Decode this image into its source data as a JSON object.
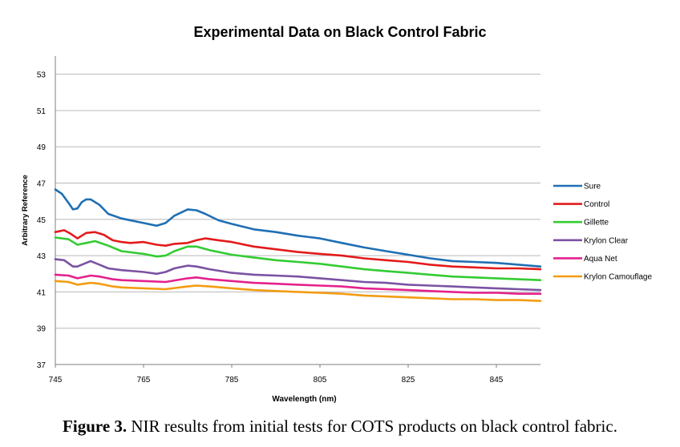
{
  "chart_data": {
    "type": "line",
    "title": "Experimental Data on Black Control Fabric",
    "xlabel": "Wavelength (nm)",
    "ylabel": "Arbitrary Reference",
    "xlim": [
      745,
      855
    ],
    "ylim": [
      37,
      54
    ],
    "xticks": [
      745,
      765,
      785,
      805,
      825,
      845
    ],
    "yticks": [
      37,
      39,
      41,
      43,
      45,
      47,
      49,
      51,
      53
    ],
    "grid": true,
    "legend": "right",
    "series": [
      {
        "name": "Sure",
        "color": "#1f6fb4",
        "x": [
          745,
          746.5,
          748,
          749,
          750,
          751,
          752,
          753,
          755,
          757,
          760,
          765,
          768,
          770,
          772,
          775,
          777,
          779,
          782,
          785,
          790,
          795,
          800,
          805,
          810,
          815,
          820,
          825,
          830,
          835,
          840,
          845,
          850,
          855
        ],
        "y": [
          46.65,
          46.4,
          45.9,
          45.55,
          45.6,
          45.95,
          46.1,
          46.1,
          45.8,
          45.3,
          45.05,
          44.8,
          44.65,
          44.8,
          45.2,
          45.55,
          45.5,
          45.3,
          44.95,
          44.75,
          44.45,
          44.3,
          44.1,
          43.95,
          43.7,
          43.45,
          43.25,
          43.05,
          42.85,
          42.7,
          42.65,
          42.6,
          42.5,
          42.4
        ]
      },
      {
        "name": "Control",
        "color": "#e31a1c",
        "x": [
          745,
          747,
          748.5,
          750,
          752,
          754,
          756,
          758,
          760,
          762,
          765,
          768,
          770,
          772,
          775,
          777,
          779,
          782,
          785,
          790,
          795,
          800,
          805,
          810,
          815,
          820,
          825,
          830,
          835,
          840,
          845,
          850,
          855
        ],
        "y": [
          44.3,
          44.4,
          44.2,
          43.95,
          44.25,
          44.3,
          44.15,
          43.85,
          43.75,
          43.7,
          43.75,
          43.6,
          43.55,
          43.65,
          43.7,
          43.85,
          43.95,
          43.85,
          43.75,
          43.5,
          43.35,
          43.2,
          43.1,
          43.0,
          42.85,
          42.75,
          42.65,
          42.5,
          42.4,
          42.35,
          42.3,
          42.3,
          42.25
        ]
      },
      {
        "name": "Gillette",
        "color": "#33cc33",
        "x": [
          745,
          748,
          750,
          752,
          754,
          757,
          760,
          765,
          768,
          770,
          772,
          775,
          777,
          780,
          785,
          790,
          795,
          800,
          805,
          810,
          815,
          820,
          825,
          830,
          835,
          840,
          845,
          850,
          855
        ],
        "y": [
          44.0,
          43.9,
          43.6,
          43.7,
          43.8,
          43.55,
          43.25,
          43.1,
          42.95,
          43.0,
          43.25,
          43.5,
          43.5,
          43.3,
          43.05,
          42.9,
          42.75,
          42.65,
          42.55,
          42.4,
          42.25,
          42.15,
          42.05,
          41.95,
          41.85,
          41.8,
          41.75,
          41.7,
          41.65
        ]
      },
      {
        "name": "Krylon Clear",
        "color": "#7b52a3",
        "x": [
          745,
          747,
          749,
          750,
          752,
          753,
          755,
          757,
          760,
          765,
          768,
          770,
          772,
          775,
          777,
          780,
          785,
          790,
          795,
          800,
          805,
          810,
          815,
          820,
          825,
          830,
          835,
          840,
          845,
          850,
          855
        ],
        "y": [
          42.8,
          42.75,
          42.4,
          42.4,
          42.6,
          42.7,
          42.5,
          42.3,
          42.2,
          42.1,
          42.0,
          42.1,
          42.3,
          42.45,
          42.4,
          42.25,
          42.05,
          41.95,
          41.9,
          41.85,
          41.75,
          41.65,
          41.55,
          41.5,
          41.4,
          41.35,
          41.3,
          41.25,
          41.2,
          41.15,
          41.1
        ]
      },
      {
        "name": "Aqua Net",
        "color": "#e4218c",
        "x": [
          745,
          748,
          750,
          753,
          755,
          758,
          760,
          765,
          770,
          775,
          777,
          780,
          785,
          790,
          795,
          800,
          805,
          810,
          815,
          820,
          825,
          830,
          835,
          840,
          845,
          850,
          855
        ],
        "y": [
          41.95,
          41.9,
          41.75,
          41.9,
          41.85,
          41.7,
          41.65,
          41.6,
          41.55,
          41.75,
          41.8,
          41.7,
          41.6,
          41.5,
          41.45,
          41.4,
          41.35,
          41.3,
          41.2,
          41.15,
          41.1,
          41.05,
          41.0,
          40.95,
          40.95,
          40.9,
          40.9
        ]
      },
      {
        "name": "Krylon Camouflage",
        "color": "#f39c12",
        "x": [
          745,
          748,
          750,
          753,
          755,
          758,
          760,
          765,
          770,
          775,
          777,
          780,
          785,
          790,
          795,
          800,
          805,
          810,
          815,
          820,
          825,
          830,
          835,
          840,
          845,
          850,
          855
        ],
        "y": [
          41.6,
          41.55,
          41.4,
          41.5,
          41.45,
          41.3,
          41.25,
          41.2,
          41.15,
          41.3,
          41.35,
          41.3,
          41.2,
          41.1,
          41.05,
          41.0,
          40.95,
          40.9,
          40.8,
          40.75,
          40.7,
          40.65,
          40.6,
          40.6,
          40.55,
          40.55,
          40.5
        ]
      }
    ]
  },
  "caption": {
    "label": "Figure 3.",
    "text": "NIR results from initial tests for COTS products on black control fabric."
  },
  "colors": {
    "grid": "#b8b8b8",
    "axis": "#7f7f7f"
  }
}
